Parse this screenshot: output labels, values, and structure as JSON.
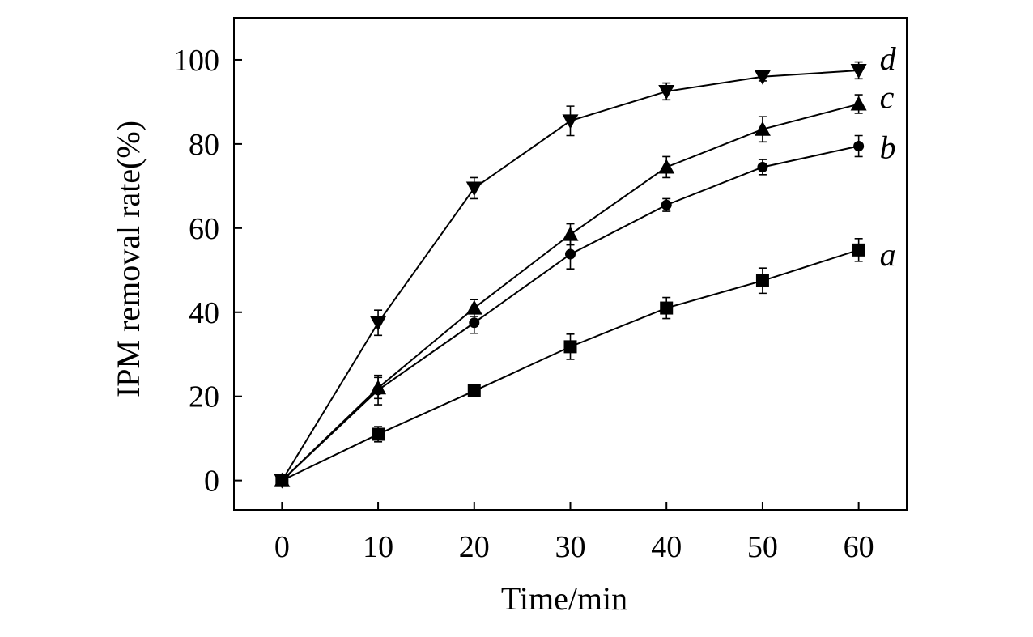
{
  "chart_data": {
    "type": "line",
    "title": "",
    "xlabel": "Time/min",
    "ylabel": "IPM removal rate(%)",
    "xlim": [
      -5,
      65
    ],
    "ylim": [
      -7,
      110
    ],
    "x": [
      0,
      10,
      20,
      30,
      40,
      50,
      60
    ],
    "xticks": [
      "0",
      "10",
      "20",
      "30",
      "40",
      "50",
      "60"
    ],
    "yticks": [
      "0",
      "20",
      "40",
      "60",
      "80",
      "100"
    ],
    "grid": false,
    "legend": "inline labels at line ends",
    "series": [
      {
        "name": "a",
        "marker": "square",
        "values": [
          0,
          11,
          21.3,
          31.8,
          41,
          47.5,
          54.8
        ],
        "errors": [
          0,
          1.8,
          1.2,
          3,
          2.5,
          3,
          2.7
        ]
      },
      {
        "name": "b",
        "marker": "circle",
        "values": [
          0,
          21.5,
          37.5,
          53.8,
          65.5,
          74.5,
          79.5
        ],
        "errors": [
          0,
          3.5,
          2.5,
          3.5,
          1.5,
          1.8,
          2.5
        ]
      },
      {
        "name": "c",
        "marker": "triangle-up",
        "values": [
          0,
          22,
          41,
          58.5,
          74.5,
          83.5,
          89.5
        ],
        "errors": [
          0,
          2.5,
          2,
          2.5,
          2.5,
          3,
          2.2
        ]
      },
      {
        "name": "d",
        "marker": "triangle-down",
        "values": [
          0,
          37.5,
          69.5,
          85.5,
          92.5,
          96,
          97.5
        ],
        "errors": [
          0,
          3,
          2.5,
          3.5,
          2,
          1,
          2
        ]
      }
    ]
  }
}
